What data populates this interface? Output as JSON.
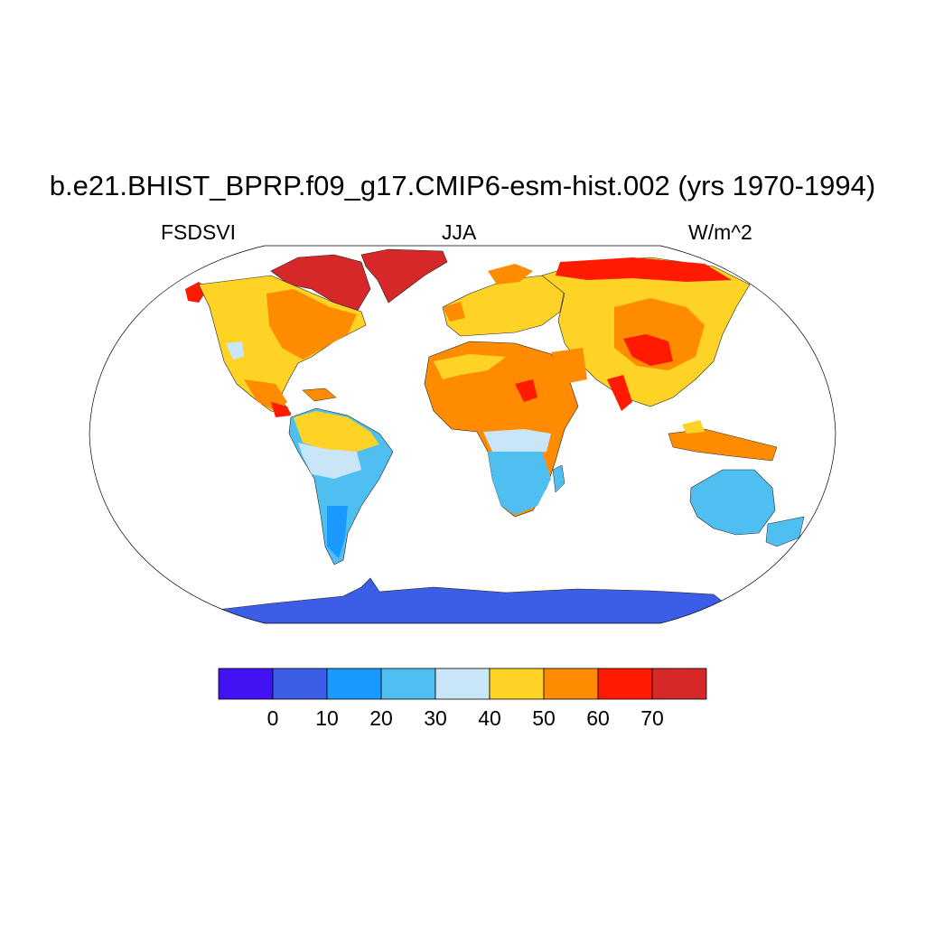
{
  "title": "b.e21.BHIST_BPRP.f09_g17.CMIP6-esm-hist.002 (yrs 1970-1994)",
  "subtitle_left": "FSDSVI",
  "subtitle_center": "JJA",
  "subtitle_right": "W/m^2",
  "colorbar": {
    "colors": [
      "#4212f5",
      "#3c5ee6",
      "#1a9aff",
      "#4fbff2",
      "#c8e6f8",
      "#ffd326",
      "#ff8c00",
      "#ff1a00",
      "#d62828"
    ],
    "labels": [
      "0",
      "10",
      "20",
      "30",
      "40",
      "50",
      "60",
      "70"
    ]
  }
}
